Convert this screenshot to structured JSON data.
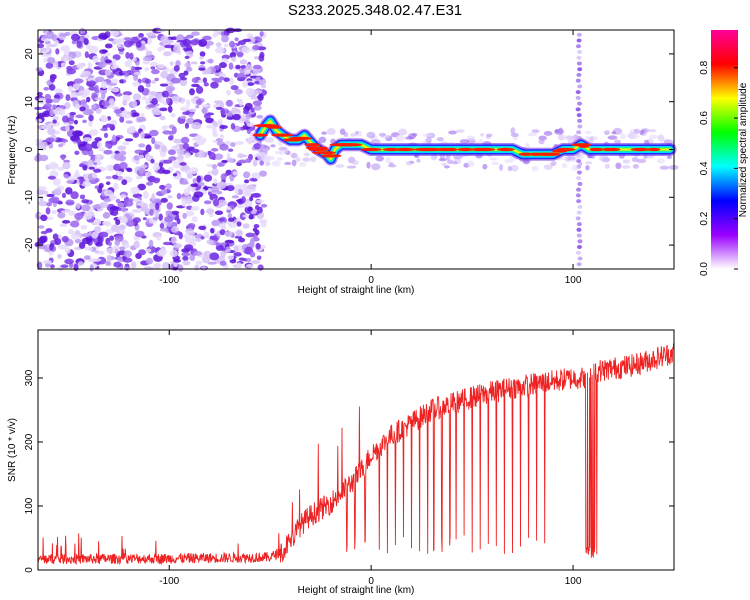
{
  "figure_title": "S233.2025.348.02.47.E31",
  "chart_data": [
    {
      "type": "heatmap",
      "name": "spectrogram",
      "xlabel": "Height of straight line (km)",
      "ylabel": "Frequency (Hz)",
      "xlim": [
        -165,
        150
      ],
      "ylim": [
        -25,
        25
      ],
      "xticks": [
        -100,
        0,
        100
      ],
      "yticks": [
        -20,
        -10,
        0,
        10,
        20
      ],
      "colorbar": {
        "label": "Normalized spectral amplitude",
        "range": [
          0,
          0.95
        ],
        "ticks": [
          0.0,
          0.2,
          0.4,
          0.6,
          0.8
        ],
        "colormap": [
          "#ffffff",
          "#9900ff",
          "#0000ff",
          "#00ffff",
          "#00ff00",
          "#ffff00",
          "#ff0000",
          "#ff0099"
        ]
      },
      "noise_region_x": [
        -165,
        -53
      ],
      "vertical_streak_x": 103,
      "ridge": {
        "x": [
          -55,
          -52,
          -50,
          -47,
          -44,
          -40,
          -36,
          -33,
          -29,
          -26,
          -22,
          -20,
          -18,
          -15,
          -10,
          -5,
          0,
          10,
          20,
          30,
          40,
          50,
          60,
          70,
          75,
          80,
          85,
          90,
          95,
          100,
          104,
          108,
          112,
          120,
          130,
          140,
          148
        ],
        "y": [
          3,
          5,
          6,
          4,
          3,
          2,
          2,
          3,
          1,
          0,
          -1,
          -2,
          0,
          1,
          1,
          1,
          0,
          0,
          0,
          0,
          0,
          0,
          0,
          0,
          -1,
          -1,
          -1,
          -1,
          0,
          0,
          1,
          0,
          0,
          0,
          0,
          0,
          0
        ]
      }
    },
    {
      "type": "line",
      "name": "snr",
      "xlabel": "Height of straight line (km)",
      "ylabel": "SNR (10 * v/v)",
      "xlim": [
        -165,
        150
      ],
      "ylim": [
        0,
        375
      ],
      "xticks": [
        -100,
        0,
        100
      ],
      "yticks": [
        0,
        100,
        200,
        300
      ],
      "color": "#ee2222",
      "trend": {
        "x": [
          -165,
          -100,
          -50,
          -45,
          -40,
          -35,
          -30,
          -25,
          -20,
          -15,
          -10,
          -5,
          0,
          10,
          20,
          30,
          40,
          50,
          60,
          70,
          80,
          90,
          100,
          105,
          110,
          120,
          130,
          140,
          150
        ],
        "y": [
          17,
          18,
          20,
          28,
          45,
          70,
          85,
          95,
          105,
          120,
          135,
          155,
          180,
          210,
          230,
          250,
          260,
          270,
          278,
          285,
          290,
          295,
          300,
          300,
          310,
          315,
          320,
          330,
          340
        ]
      },
      "dropouts_x": [
        -12,
        -8,
        -3,
        4,
        8,
        12,
        16,
        20,
        24,
        28,
        31,
        35,
        39,
        42,
        46,
        50,
        54,
        58,
        62,
        66,
        70,
        74,
        78,
        82,
        86
      ],
      "low_band_x": [
        106,
        112
      ],
      "low_band_y": 18
    }
  ]
}
